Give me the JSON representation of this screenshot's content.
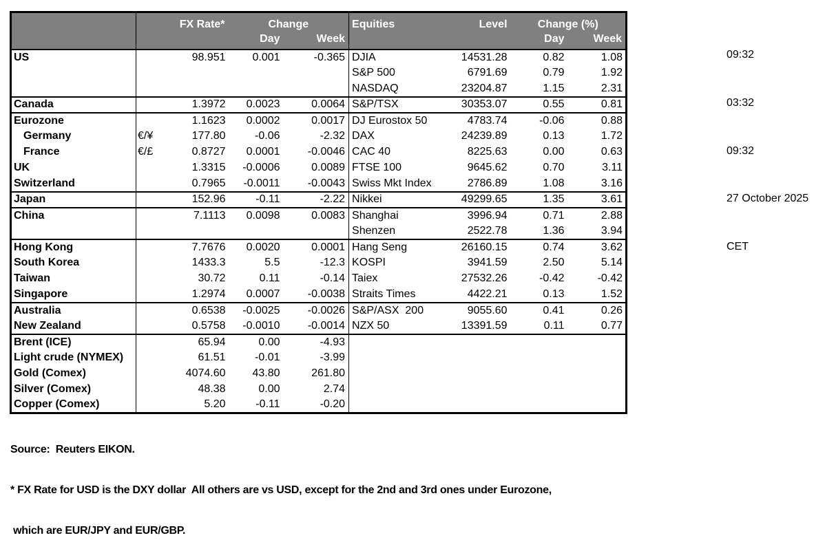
{
  "timestamps": [
    "09:32",
    "03:32",
    "09:32",
    "27 October 2025",
    "CET"
  ],
  "table": {
    "fx_header": {
      "rate_label": "FX Rate*",
      "change_label": "Change",
      "day_label": "Day",
      "week_label": "Week"
    },
    "equities_header": {
      "title_label": "Equities",
      "level_label": "Level",
      "change_label": "Change (%)",
      "day_label": "Day",
      "week_label": "Week"
    },
    "rows": [
      {
        "country": "US",
        "indent": false,
        "pair": "",
        "rate": "98.951",
        "fx_day": "0.001",
        "fx_week": "-0.365",
        "equity": "DJIA",
        "level": "14531.28",
        "eq_day": "0.82",
        "eq_week": "1.08",
        "group_start": false
      },
      {
        "country": "",
        "indent": false,
        "pair": "",
        "rate": "",
        "fx_day": "",
        "fx_week": "",
        "equity": "S&P 500",
        "level": "6791.69",
        "eq_day": "0.79",
        "eq_week": "1.92",
        "group_start": false
      },
      {
        "country": "",
        "indent": false,
        "pair": "",
        "rate": "",
        "fx_day": "",
        "fx_week": "",
        "equity": "NASDAQ",
        "level": "23204.87",
        "eq_day": "1.15",
        "eq_week": "2.31",
        "group_start": false
      },
      {
        "country": "Canada",
        "indent": false,
        "pair": "",
        "rate": "1.3972",
        "fx_day": "0.0023",
        "fx_week": "0.0064",
        "equity": "S&P/TSX",
        "level": "30353.07",
        "eq_day": "0.55",
        "eq_week": "0.81",
        "group_start": true
      },
      {
        "country": "Eurozone",
        "indent": false,
        "pair": "",
        "rate": "1.1623",
        "fx_day": "0.0002",
        "fx_week": "0.0017",
        "equity": "DJ Eurostox 50",
        "level": "4783.74",
        "eq_day": "-0.06",
        "eq_week": "0.88",
        "group_start": true
      },
      {
        "country": "Germany",
        "indent": true,
        "pair": "€/¥",
        "rate": "177.80",
        "fx_day": "-0.06",
        "fx_week": "-2.32",
        "equity": "DAX",
        "level": "24239.89",
        "eq_day": "0.13",
        "eq_week": "1.72",
        "group_start": false
      },
      {
        "country": "France",
        "indent": true,
        "pair": "€/£",
        "rate": "0.8727",
        "fx_day": "0.0001",
        "fx_week": "-0.0046",
        "equity": "CAC 40",
        "level": "8225.63",
        "eq_day": "0.00",
        "eq_week": "0.63",
        "group_start": false
      },
      {
        "country": "UK",
        "indent": false,
        "pair": "",
        "rate": "1.3315",
        "fx_day": "-0.0006",
        "fx_week": "0.0089",
        "equity": "FTSE 100",
        "level": "9645.62",
        "eq_day": "0.70",
        "eq_week": "3.11",
        "group_start": false
      },
      {
        "country": "Switzerland",
        "indent": false,
        "pair": "",
        "rate": "0.7965",
        "fx_day": "-0.0011",
        "fx_week": "-0.0043",
        "equity": "Swiss Mkt Index",
        "level": "2786.89",
        "eq_day": "1.08",
        "eq_week": "3.16",
        "group_start": false
      },
      {
        "country": "Japan",
        "indent": false,
        "pair": "",
        "rate": "152.96",
        "fx_day": "-0.11",
        "fx_week": "-2.22",
        "equity": "Nikkei",
        "level": "49299.65",
        "eq_day": "1.35",
        "eq_week": "3.61",
        "group_start": true
      },
      {
        "country": "China",
        "indent": false,
        "pair": "",
        "rate": "7.1113",
        "fx_day": "0.0098",
        "fx_week": "0.0083",
        "equity": "Shanghai",
        "level": "3996.94",
        "eq_day": "0.71",
        "eq_week": "2.88",
        "group_start": true
      },
      {
        "country": "",
        "indent": false,
        "pair": "",
        "rate": "",
        "fx_day": "",
        "fx_week": "",
        "equity": "Shenzen",
        "level": "2522.78",
        "eq_day": "1.36",
        "eq_week": "3.94",
        "group_start": false
      },
      {
        "country": "Hong Kong",
        "indent": false,
        "pair": "",
        "rate": "7.7676",
        "fx_day": "0.0020",
        "fx_week": "0.0001",
        "equity": "Hang Seng",
        "level": "26160.15",
        "eq_day": "0.74",
        "eq_week": "3.62",
        "group_start": true
      },
      {
        "country": "South Korea",
        "indent": false,
        "pair": "",
        "rate": "1433.3",
        "fx_day": "5.5",
        "fx_week": "-12.3",
        "equity": "KOSPI",
        "level": "3941.59",
        "eq_day": "2.50",
        "eq_week": "5.14",
        "group_start": false
      },
      {
        "country": "Taiwan",
        "indent": false,
        "pair": "",
        "rate": "30.72",
        "fx_day": "0.11",
        "fx_week": "-0.14",
        "equity": "Taiex",
        "level": "27532.26",
        "eq_day": "-0.42",
        "eq_week": "-0.42",
        "group_start": false
      },
      {
        "country": "Singapore",
        "indent": false,
        "pair": "",
        "rate": "1.2974",
        "fx_day": "0.0007",
        "fx_week": "-0.0038",
        "equity": "Straits Times",
        "level": "4422.21",
        "eq_day": "0.13",
        "eq_week": "1.52",
        "group_start": false
      },
      {
        "country": "Australia",
        "indent": false,
        "pair": "",
        "rate": "0.6538",
        "fx_day": "-0.0025",
        "fx_week": "-0.0026",
        "equity": "S&P/ASX  200",
        "level": "9055.60",
        "eq_day": "0.41",
        "eq_week": "0.26",
        "group_start": true
      },
      {
        "country": "New Zealand",
        "indent": false,
        "pair": "",
        "rate": "0.5758",
        "fx_day": "-0.0010",
        "fx_week": "-0.0014",
        "equity": "NZX 50",
        "level": "13391.59",
        "eq_day": "0.11",
        "eq_week": "0.77",
        "group_start": false
      },
      {
        "country": "Brent (ICE)",
        "indent": false,
        "pair": "",
        "rate": "65.94",
        "fx_day": "0.00",
        "fx_week": "-4.93",
        "equity": "",
        "level": "",
        "eq_day": "",
        "eq_week": "",
        "group_start": true
      },
      {
        "country": "Light crude (NYMEX)",
        "indent": false,
        "pair": "",
        "rate": "61.51",
        "fx_day": "-0.01",
        "fx_week": "-3.99",
        "equity": "",
        "level": "",
        "eq_day": "",
        "eq_week": "",
        "group_start": false
      },
      {
        "country": "Gold (Comex)",
        "indent": false,
        "pair": "",
        "rate": "4074.60",
        "fx_day": "43.80",
        "fx_week": "261.80",
        "equity": "",
        "level": "",
        "eq_day": "",
        "eq_week": "",
        "group_start": false
      },
      {
        "country": "Silver (Comex)",
        "indent": false,
        "pair": "",
        "rate": "48.38",
        "fx_day": "0.00",
        "fx_week": "2.74",
        "equity": "",
        "level": "",
        "eq_day": "",
        "eq_week": "",
        "group_start": false
      },
      {
        "country": "Copper (Comex)",
        "indent": false,
        "pair": "",
        "rate": "5.20",
        "fx_day": "-0.11",
        "fx_week": "-0.20",
        "equity": "",
        "level": "",
        "eq_day": "",
        "eq_week": "",
        "group_start": false
      }
    ]
  },
  "footer": {
    "source": "Source:  Reuters EIKON.",
    "footnote_line1": "* FX Rate for USD is the DXY dollar  All others are vs USD, except for the 2nd and 3rd ones under Eurozone,",
    "footnote_line2": " which are EUR/JPY and EUR/GBP."
  },
  "colors": {
    "header_bg": "#808080",
    "header_text": "#ffffff",
    "border": "#000000",
    "text": "#000000",
    "background": "#ffffff"
  }
}
